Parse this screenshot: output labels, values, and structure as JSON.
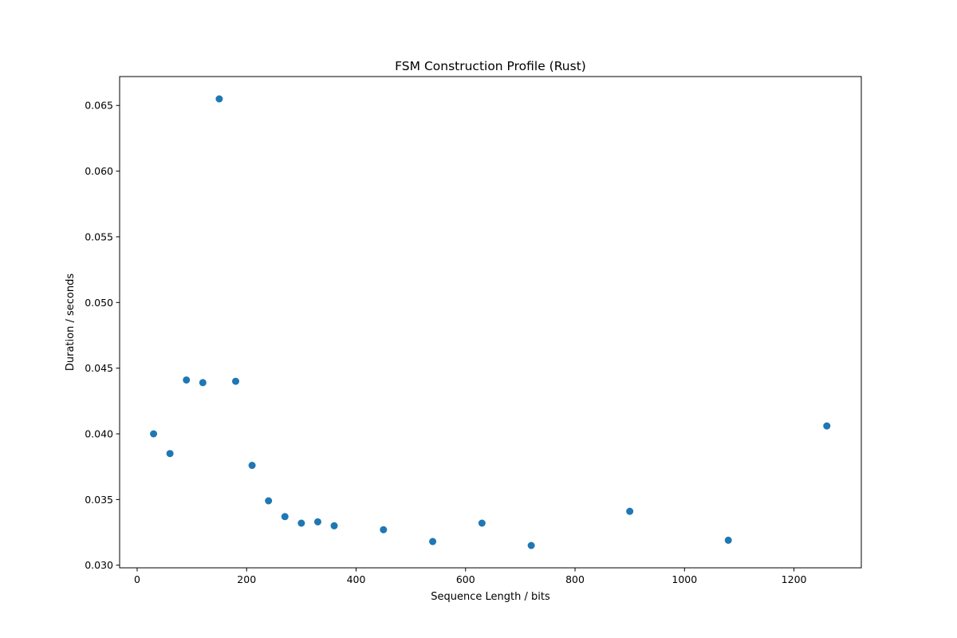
{
  "chart_data": {
    "type": "scatter",
    "title": "FSM Construction Profile (Rust)",
    "xlabel": "Sequence Length / bits",
    "ylabel": "Duration / seconds",
    "xlim": [
      -32,
      1323
    ],
    "ylim": [
      0.0298,
      0.0672
    ],
    "xticks": [
      0,
      200,
      400,
      600,
      800,
      1000,
      1200
    ],
    "yticks": [
      0.03,
      0.035,
      0.04,
      0.045,
      0.05,
      0.055,
      0.06,
      0.065
    ],
    "xtick_labels": [
      "0",
      "200",
      "400",
      "600",
      "800",
      "1000",
      "1200"
    ],
    "ytick_labels": [
      "0.030",
      "0.035",
      "0.040",
      "0.045",
      "0.050",
      "0.055",
      "0.060",
      "0.065"
    ],
    "grid": false,
    "marker_color": "#1f77b4",
    "points": [
      {
        "x": 30,
        "y": 0.04
      },
      {
        "x": 60,
        "y": 0.0385
      },
      {
        "x": 90,
        "y": 0.0441
      },
      {
        "x": 120,
        "y": 0.0439
      },
      {
        "x": 150,
        "y": 0.0655
      },
      {
        "x": 180,
        "y": 0.044
      },
      {
        "x": 210,
        "y": 0.0376
      },
      {
        "x": 240,
        "y": 0.0349
      },
      {
        "x": 270,
        "y": 0.0337
      },
      {
        "x": 300,
        "y": 0.0332
      },
      {
        "x": 330,
        "y": 0.0333
      },
      {
        "x": 360,
        "y": 0.033
      },
      {
        "x": 450,
        "y": 0.0327
      },
      {
        "x": 540,
        "y": 0.0318
      },
      {
        "x": 630,
        "y": 0.0332
      },
      {
        "x": 720,
        "y": 0.0315
      },
      {
        "x": 900,
        "y": 0.0341
      },
      {
        "x": 1080,
        "y": 0.0319
      },
      {
        "x": 1260,
        "y": 0.0406
      }
    ]
  }
}
